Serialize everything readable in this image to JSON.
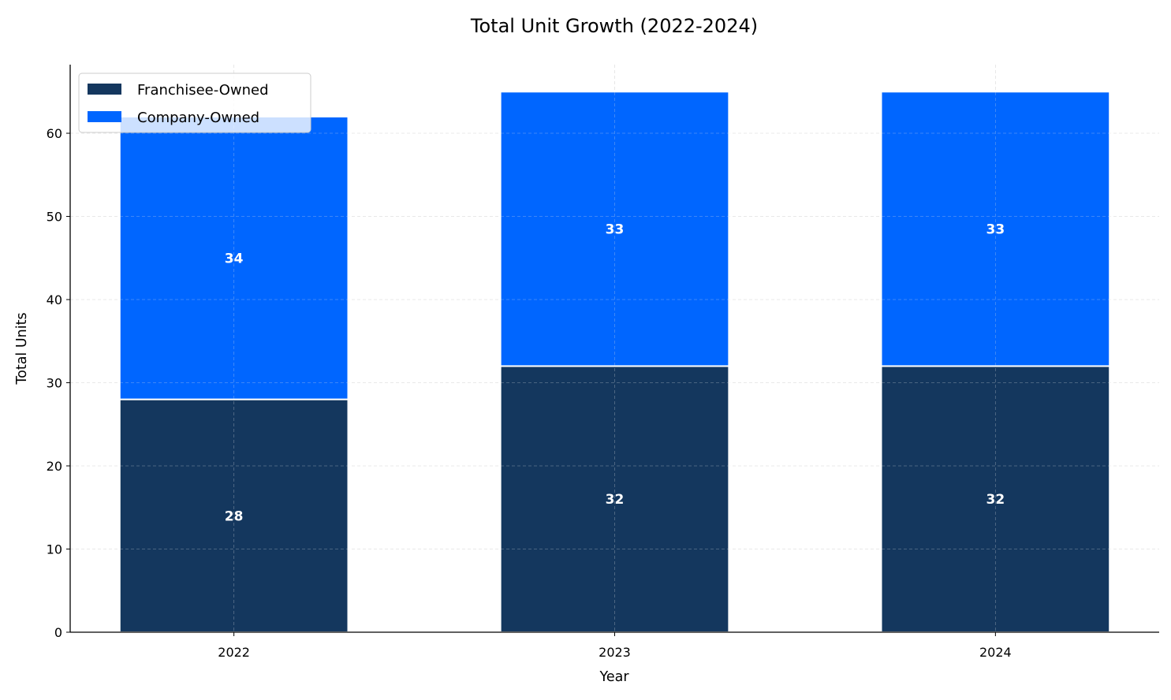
{
  "chart_data": {
    "type": "bar",
    "stacked": true,
    "title": "Total Unit Growth (2022-2024)",
    "xlabel": "Year",
    "ylabel": "Total Units",
    "categories": [
      "2022",
      "2023",
      "2024"
    ],
    "series": [
      {
        "name": "Franchisee-Owned",
        "values": [
          28,
          32,
          32
        ],
        "color": "#14375E"
      },
      {
        "name": "Company-Owned",
        "values": [
          34,
          33,
          33
        ],
        "color": "#0066FF"
      }
    ],
    "ylim": [
      0,
      68.25
    ],
    "yticks": [
      0,
      10,
      20,
      30,
      40,
      50,
      60
    ],
    "grid": true,
    "legend_position": "top-left",
    "data_labels": true
  }
}
